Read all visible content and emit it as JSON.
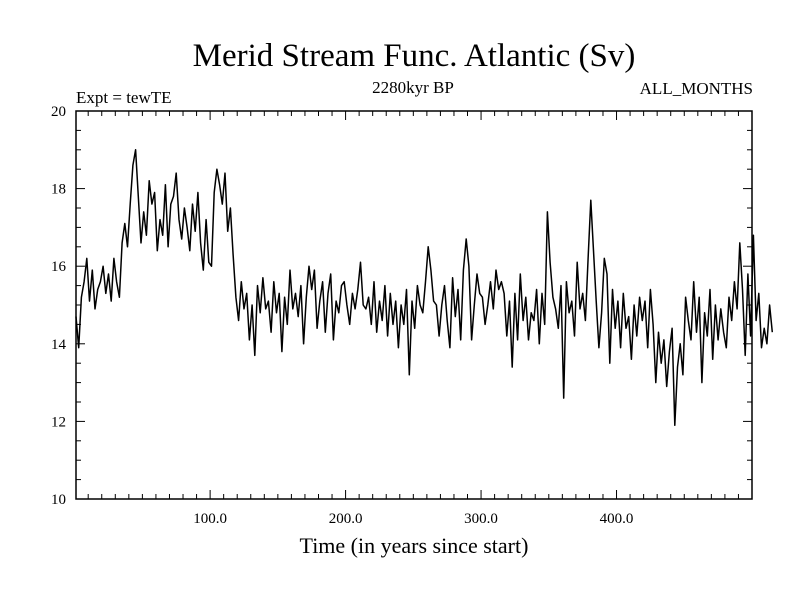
{
  "chart_data": {
    "type": "line",
    "title": "Merid Stream Func. Atlantic (Sv)",
    "subtitle_left": "Expt = tewTE",
    "subtitle_center": "2280kyr BP",
    "subtitle_right": "ALL_MONTHS",
    "xlabel": "Time (in years since start)",
    "ylabel": "",
    "xlim": [
      1,
      500
    ],
    "ylim": [
      10,
      20
    ],
    "x_ticks": [
      100,
      200,
      300,
      400
    ],
    "x_tick_labels": [
      "100.0",
      "200.0",
      "300.0",
      "400.0"
    ],
    "y_ticks": [
      10,
      12,
      14,
      16,
      18,
      20
    ],
    "y_tick_labels": [
      "10",
      "12",
      "14",
      "16",
      "18",
      "20"
    ],
    "grid": false,
    "series": [
      {
        "name": "Merid Stream Func. Atlantic",
        "x_start": 1,
        "x_step": 2,
        "values": [
          14.7,
          13.9,
          15.2,
          15.6,
          16.2,
          15.1,
          15.9,
          14.9,
          15.4,
          15.6,
          16.0,
          15.3,
          15.8,
          15.1,
          16.2,
          15.6,
          15.2,
          16.6,
          17.1,
          16.5,
          17.6,
          18.6,
          19.0,
          17.8,
          16.6,
          17.4,
          16.8,
          18.2,
          17.6,
          17.9,
          16.4,
          17.2,
          16.8,
          18.1,
          16.5,
          17.6,
          17.8,
          18.4,
          17.2,
          16.7,
          17.5,
          17.0,
          16.4,
          17.6,
          16.9,
          17.9,
          16.6,
          15.9,
          17.2,
          16.1,
          16.0,
          17.9,
          18.5,
          18.1,
          17.6,
          18.4,
          16.9,
          17.5,
          16.3,
          15.2,
          14.6,
          15.6,
          14.9,
          15.3,
          14.1,
          15.0,
          13.7,
          15.5,
          14.8,
          15.7,
          14.9,
          15.1,
          14.3,
          15.6,
          14.8,
          15.3,
          13.8,
          15.2,
          14.5,
          15.9,
          14.9,
          15.3,
          14.7,
          15.5,
          14.0,
          15.2,
          16.0,
          15.4,
          15.9,
          14.4,
          15.1,
          15.6,
          14.3,
          15.3,
          15.8,
          14.1,
          15.1,
          14.8,
          15.5,
          15.6,
          15.0,
          14.5,
          15.3,
          14.9,
          15.4,
          16.1,
          15.0,
          14.9,
          15.2,
          14.5,
          15.6,
          14.3,
          15.1,
          14.6,
          15.5,
          14.2,
          15.3,
          14.5,
          15.1,
          13.9,
          15.0,
          14.5,
          15.4,
          13.2,
          15.1,
          14.4,
          15.5,
          15.0,
          14.8,
          15.6,
          16.5,
          15.9,
          15.1,
          15.0,
          14.2,
          15.0,
          15.5,
          14.6,
          13.9,
          15.7,
          14.7,
          15.4,
          14.1,
          15.9,
          16.7,
          16.0,
          14.1,
          15.0,
          15.8,
          15.3,
          15.2,
          14.5,
          15.0,
          15.6,
          14.9,
          15.9,
          15.4,
          15.6,
          15.3,
          14.2,
          15.1,
          13.4,
          15.3,
          14.1,
          15.8,
          14.6,
          15.2,
          14.1,
          14.8,
          14.6,
          15.4,
          14.0,
          15.3,
          14.5,
          17.4,
          16.1,
          15.2,
          14.9,
          14.4,
          15.5,
          12.6,
          15.6,
          14.8,
          15.1,
          14.2,
          16.1,
          14.9,
          15.3,
          14.6,
          16.2,
          17.7,
          16.4,
          15.1,
          13.9,
          14.8,
          16.2,
          15.8,
          13.5,
          15.4,
          14.4,
          15.1,
          13.9,
          15.3,
          14.4,
          14.7,
          13.6,
          15.0,
          14.2,
          15.2,
          14.6,
          15.1,
          13.9,
          15.4,
          14.5,
          13.0,
          14.3,
          13.5,
          14.1,
          12.9,
          13.8,
          14.4,
          11.9,
          13.4,
          14.0,
          13.2,
          15.2,
          14.6,
          14.1,
          15.6,
          14.3,
          15.2,
          13.0,
          14.8,
          14.2,
          15.4,
          13.6,
          15.0,
          14.1,
          14.9,
          14.3,
          13.9,
          15.2,
          14.6,
          15.6,
          14.9,
          16.6,
          15.4,
          13.7,
          15.8,
          14.2,
          16.8,
          14.6,
          15.3,
          13.9,
          14.4,
          14.0,
          15.0,
          14.3
        ]
      }
    ]
  }
}
